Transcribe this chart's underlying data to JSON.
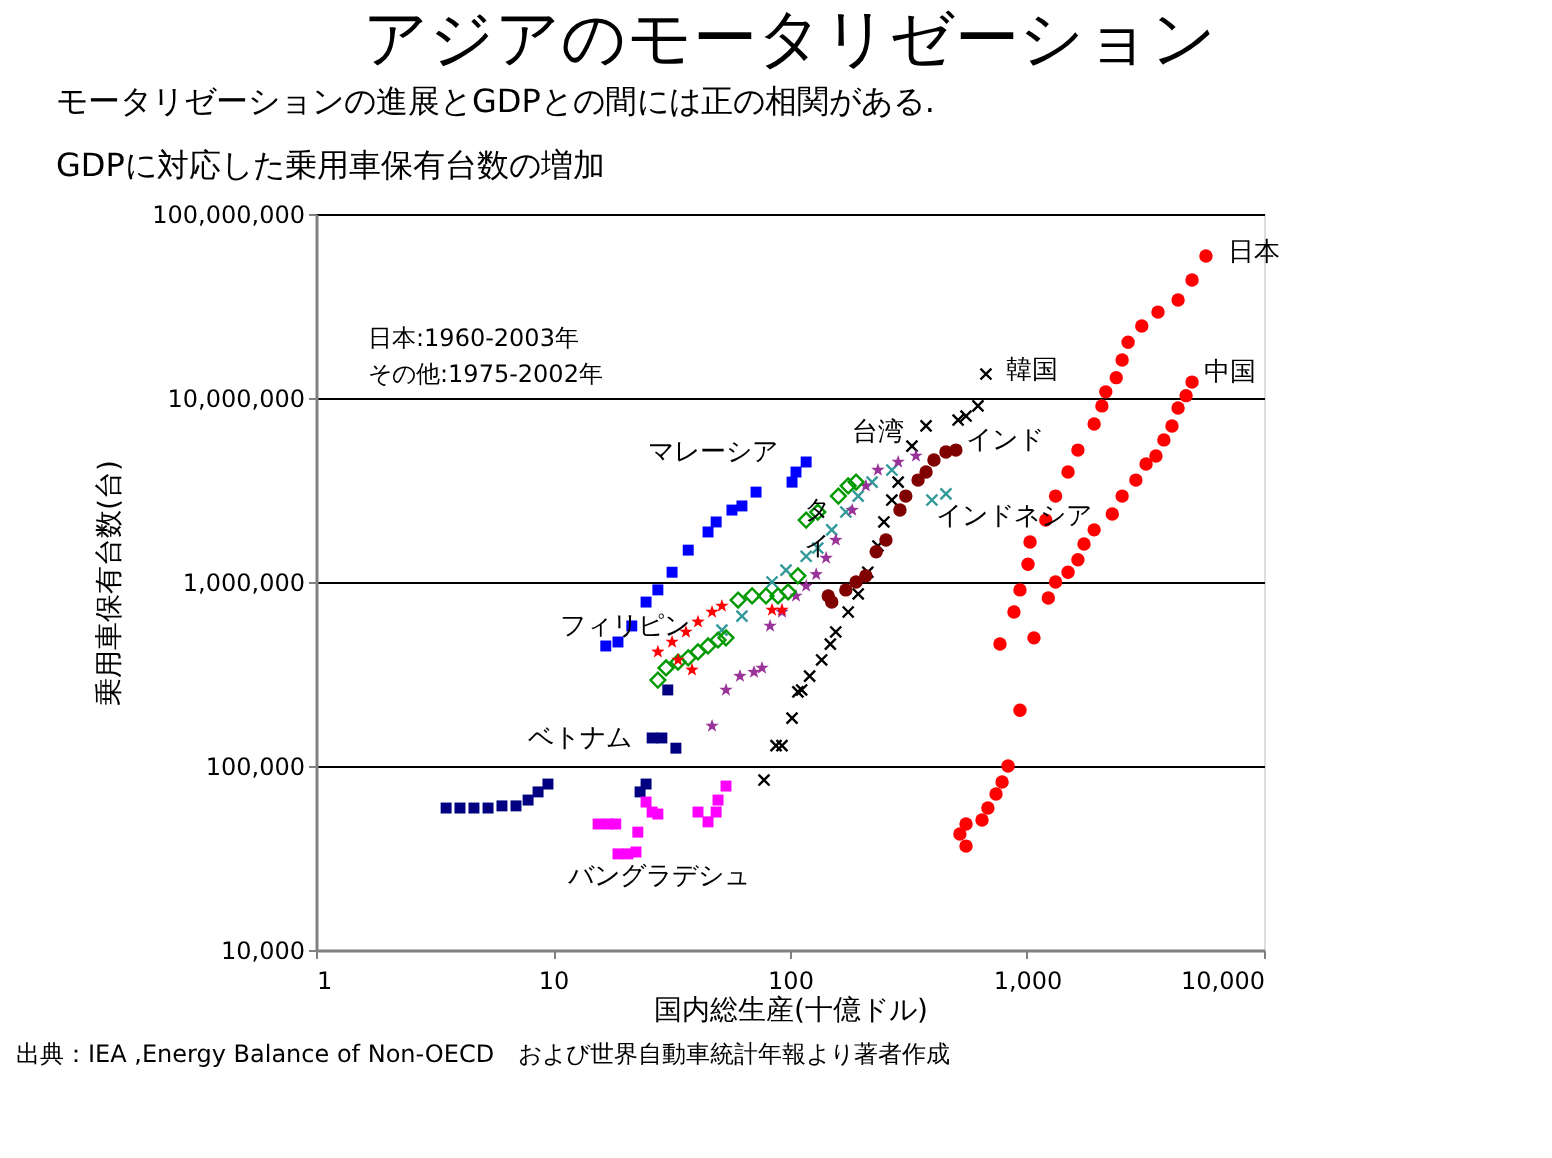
{
  "chart_data": {
    "type": "scatter",
    "title": "アジアのモータリゼーション",
    "subtitle": "モータリゼーションの進展とGDPとの間には正の相関がある.",
    "xlabel": "国内総生産(十億ドル)",
    "ylabel": "乗用車保有台数(台)",
    "log": "xy",
    "grid": "y",
    "xlim": [
      1,
      10000
    ],
    "xticks": [
      1,
      10,
      100,
      {
        "value": 1000,
        "label": "1,000"
      },
      {
        "value": 10000,
        "label": "10,000"
      }
    ],
    "ylim": [
      10000,
      100000000
    ],
    "yticks": [
      {
        "value": 10000,
        "label": "10,000"
      },
      {
        "value": 100000,
        "label": "100,000"
      },
      {
        "value": 1000000,
        "label": "1,000,000"
      },
      {
        "value": 10000000,
        "label": "10,000,000"
      },
      {
        "value": 100000000,
        "label": "100,000,000"
      }
    ],
    "series": [
      {
        "name": "日本",
        "color": "#ff0000",
        "marker": "circle",
        "x": [
          769,
          881,
          934,
          1010,
          1030,
          1200,
          1320,
          1490,
          1640,
          1920,
          2070,
          2150,
          2380,
          2520,
          2670,
          3050,
          3570,
          4340,
          4970,
          5690
        ],
        "values": [
          460000,
          687000,
          906000,
          1250000,
          1650000,
          2170000,
          2930000,
          3960000,
          5210000,
          7220000,
          9060000,
          10800000,
          12900000,
          16100000,
          20100000,
          24600000,
          29300000,
          34100000,
          43800000,
          59100000
        ]
      },
      {
        "name": "中国",
        "color": "#ff0000",
        "marker": "circle",
        "x": [
          521,
          553,
          553,
          646,
          684,
          740,
          785,
          832,
          934,
          1070,
          1230,
          1320,
          1490,
          1640,
          1740,
          1920,
          2290,
          2520,
          2880,
          3180,
          3500,
          3780,
          4090,
          4340,
          4690,
          4970
        ],
        "values": [
          42700,
          36700,
          48400,
          50900,
          59100,
          70500,
          81900,
          100000,
          201000,
          497000,
          818000,
          1000000,
          1130000,
          1320000,
          1610000,
          1920000,
          2340000,
          2930000,
          3580000,
          4380000,
          4840000,
          5920000,
          7050000,
          8830000,
          10300000,
          12200000
        ]
      },
      {
        "name": "韓国",
        "color": "#000000",
        "marker": "cross",
        "x": [
          77.7,
          87.3,
          92.5,
          102,
          108,
          112,
          121,
          136,
          148,
          156,
          176,
          194,
          213,
          235,
          249,
          269,
          286,
          327,
          375,
          512,
          553,
          621,
          671
        ],
        "values": [
          83900,
          129000,
          129000,
          182000,
          253000,
          259000,
          308000,
          377000,
          460000,
          535000,
          687000,
          861000,
          1130000,
          1570000,
          2120000,
          2790000,
          3490000,
          5480000,
          7050000,
          7590000,
          7980000,
          9060000,
          13500000
        ]
      },
      {
        "name": "インド",
        "color": "#800000",
        "marker": "circle",
        "x": [
          145,
          150,
          172,
          190,
          209,
          231,
          254,
          291,
          308,
          347,
          375,
          405,
          455,
          501
        ],
        "values": [
          840000,
          778000,
          906000,
          1000000,
          1080000,
          1460000,
          1690000,
          2460000,
          2930000,
          3580000,
          3960000,
          4600000,
          5090000,
          5210000
        ]
      },
      {
        "name": "インドネシア",
        "color": "#339999",
        "marker": "cross",
        "x": [
          51.6,
          62.7,
          84.0,
          96.2,
          117,
          131,
          150,
          172,
          194,
          222,
          269,
          397,
          455
        ],
        "values": [
          548000,
          653000,
          1000000,
          1160000,
          1380000,
          1530000,
          1920000,
          2400000,
          2930000,
          3490000,
          4060000,
          2790000,
          3010000
        ]
      },
      {
        "name": "台湾",
        "color": "#993399",
        "marker": "star",
        "x": [
          46.9,
          53.7,
          61.5,
          70.5,
          76.2,
          82.4,
          92.5,
          106,
          117,
          129,
          142,
          156,
          183,
          209,
          235,
          286,
          340
        ],
        "values": [
          165000,
          259000,
          308000,
          324000,
          341000,
          577000,
          687000,
          840000,
          951000,
          1100000,
          1350000,
          1690000,
          2460000,
          3330000,
          4060000,
          4490000,
          4840000
        ]
      },
      {
        "name": "タイ",
        "color": "#009900",
        "marker": "diamond",
        "x": [
          27.7,
          30.0,
          33.7,
          37.2,
          40.9,
          45.1,
          49.7,
          53.7,
          60.4,
          69.2,
          79.2,
          89.0,
          98.2,
          108,
          117,
          131,
          160,
          176,
          190
        ],
        "values": [
          293000,
          341000,
          367000,
          387000,
          417000,
          449000,
          484000,
          497000,
          798000,
          840000,
          840000,
          840000,
          883000,
          1080000,
          2170000,
          2400000,
          2930000,
          3330000,
          3490000
        ]
      },
      {
        "name": "フィリピン",
        "color": "#ff0000",
        "marker": "star",
        "x": [
          27.7,
          31.8,
          33.7,
          36.4,
          38.6,
          40.9,
          46.9,
          51.6,
          84.0,
          92.5
        ],
        "values": [
          417000,
          472000,
          377000,
          535000,
          333000,
          607000,
          687000,
          741000,
          705000,
          705000
        ]
      },
      {
        "name": "マレーシア",
        "color": "#0000ff",
        "marker": "square",
        "x": [
          16.7,
          18.8,
          21.5,
          24.7,
          27.7,
          31.8,
          37.2,
          45.1,
          48.8,
          56.9,
          62.7,
          71.9,
          102,
          106,
          117
        ],
        "values": [
          449000,
          472000,
          577000,
          778000,
          906000,
          1130000,
          1490000,
          1870000,
          2120000,
          2460000,
          2590000,
          3080000,
          3490000,
          3960000,
          4490000
        ]
      },
      {
        "name": "ベトナム",
        "color": "#000080",
        "marker": "square",
        "x": [
          3.54,
          4.05,
          4.64,
          5.32,
          6.09,
          6.98,
          7.85,
          8.65,
          9.52,
          23.3,
          24.7,
          26.2,
          28.8,
          33.0,
          30.5
        ],
        "values": [
          59100,
          59100,
          59100,
          59100,
          60700,
          60700,
          65300,
          72300,
          79800,
          72300,
          79800,
          142000,
          142000,
          125000,
          259000
        ]
      },
      {
        "name": "バングラデシュ",
        "color": "#ff00ff",
        "marker": "square",
        "x": [
          15.5,
          17.1,
          18.4,
          22.8,
          18.8,
          20.7,
          22.4,
          24.7,
          26.2,
          27.7,
          40.9,
          45.1,
          48.8,
          49.7,
          53.7
        ],
        "values": [
          48400,
          48400,
          48400,
          43700,
          33300,
          33300,
          34100,
          63700,
          56200,
          54800,
          56200,
          49700,
          56200,
          65300,
          77800
        ]
      }
    ],
    "annotations": [
      "GDPに対応した乗用車保有台数の増加",
      "日本:1960-2003年",
      "その他:1975-2002年",
      "出典：IEA ,Energy  Balance of Non-OECD　および世界自動車統計年報より著者作成"
    ]
  }
}
